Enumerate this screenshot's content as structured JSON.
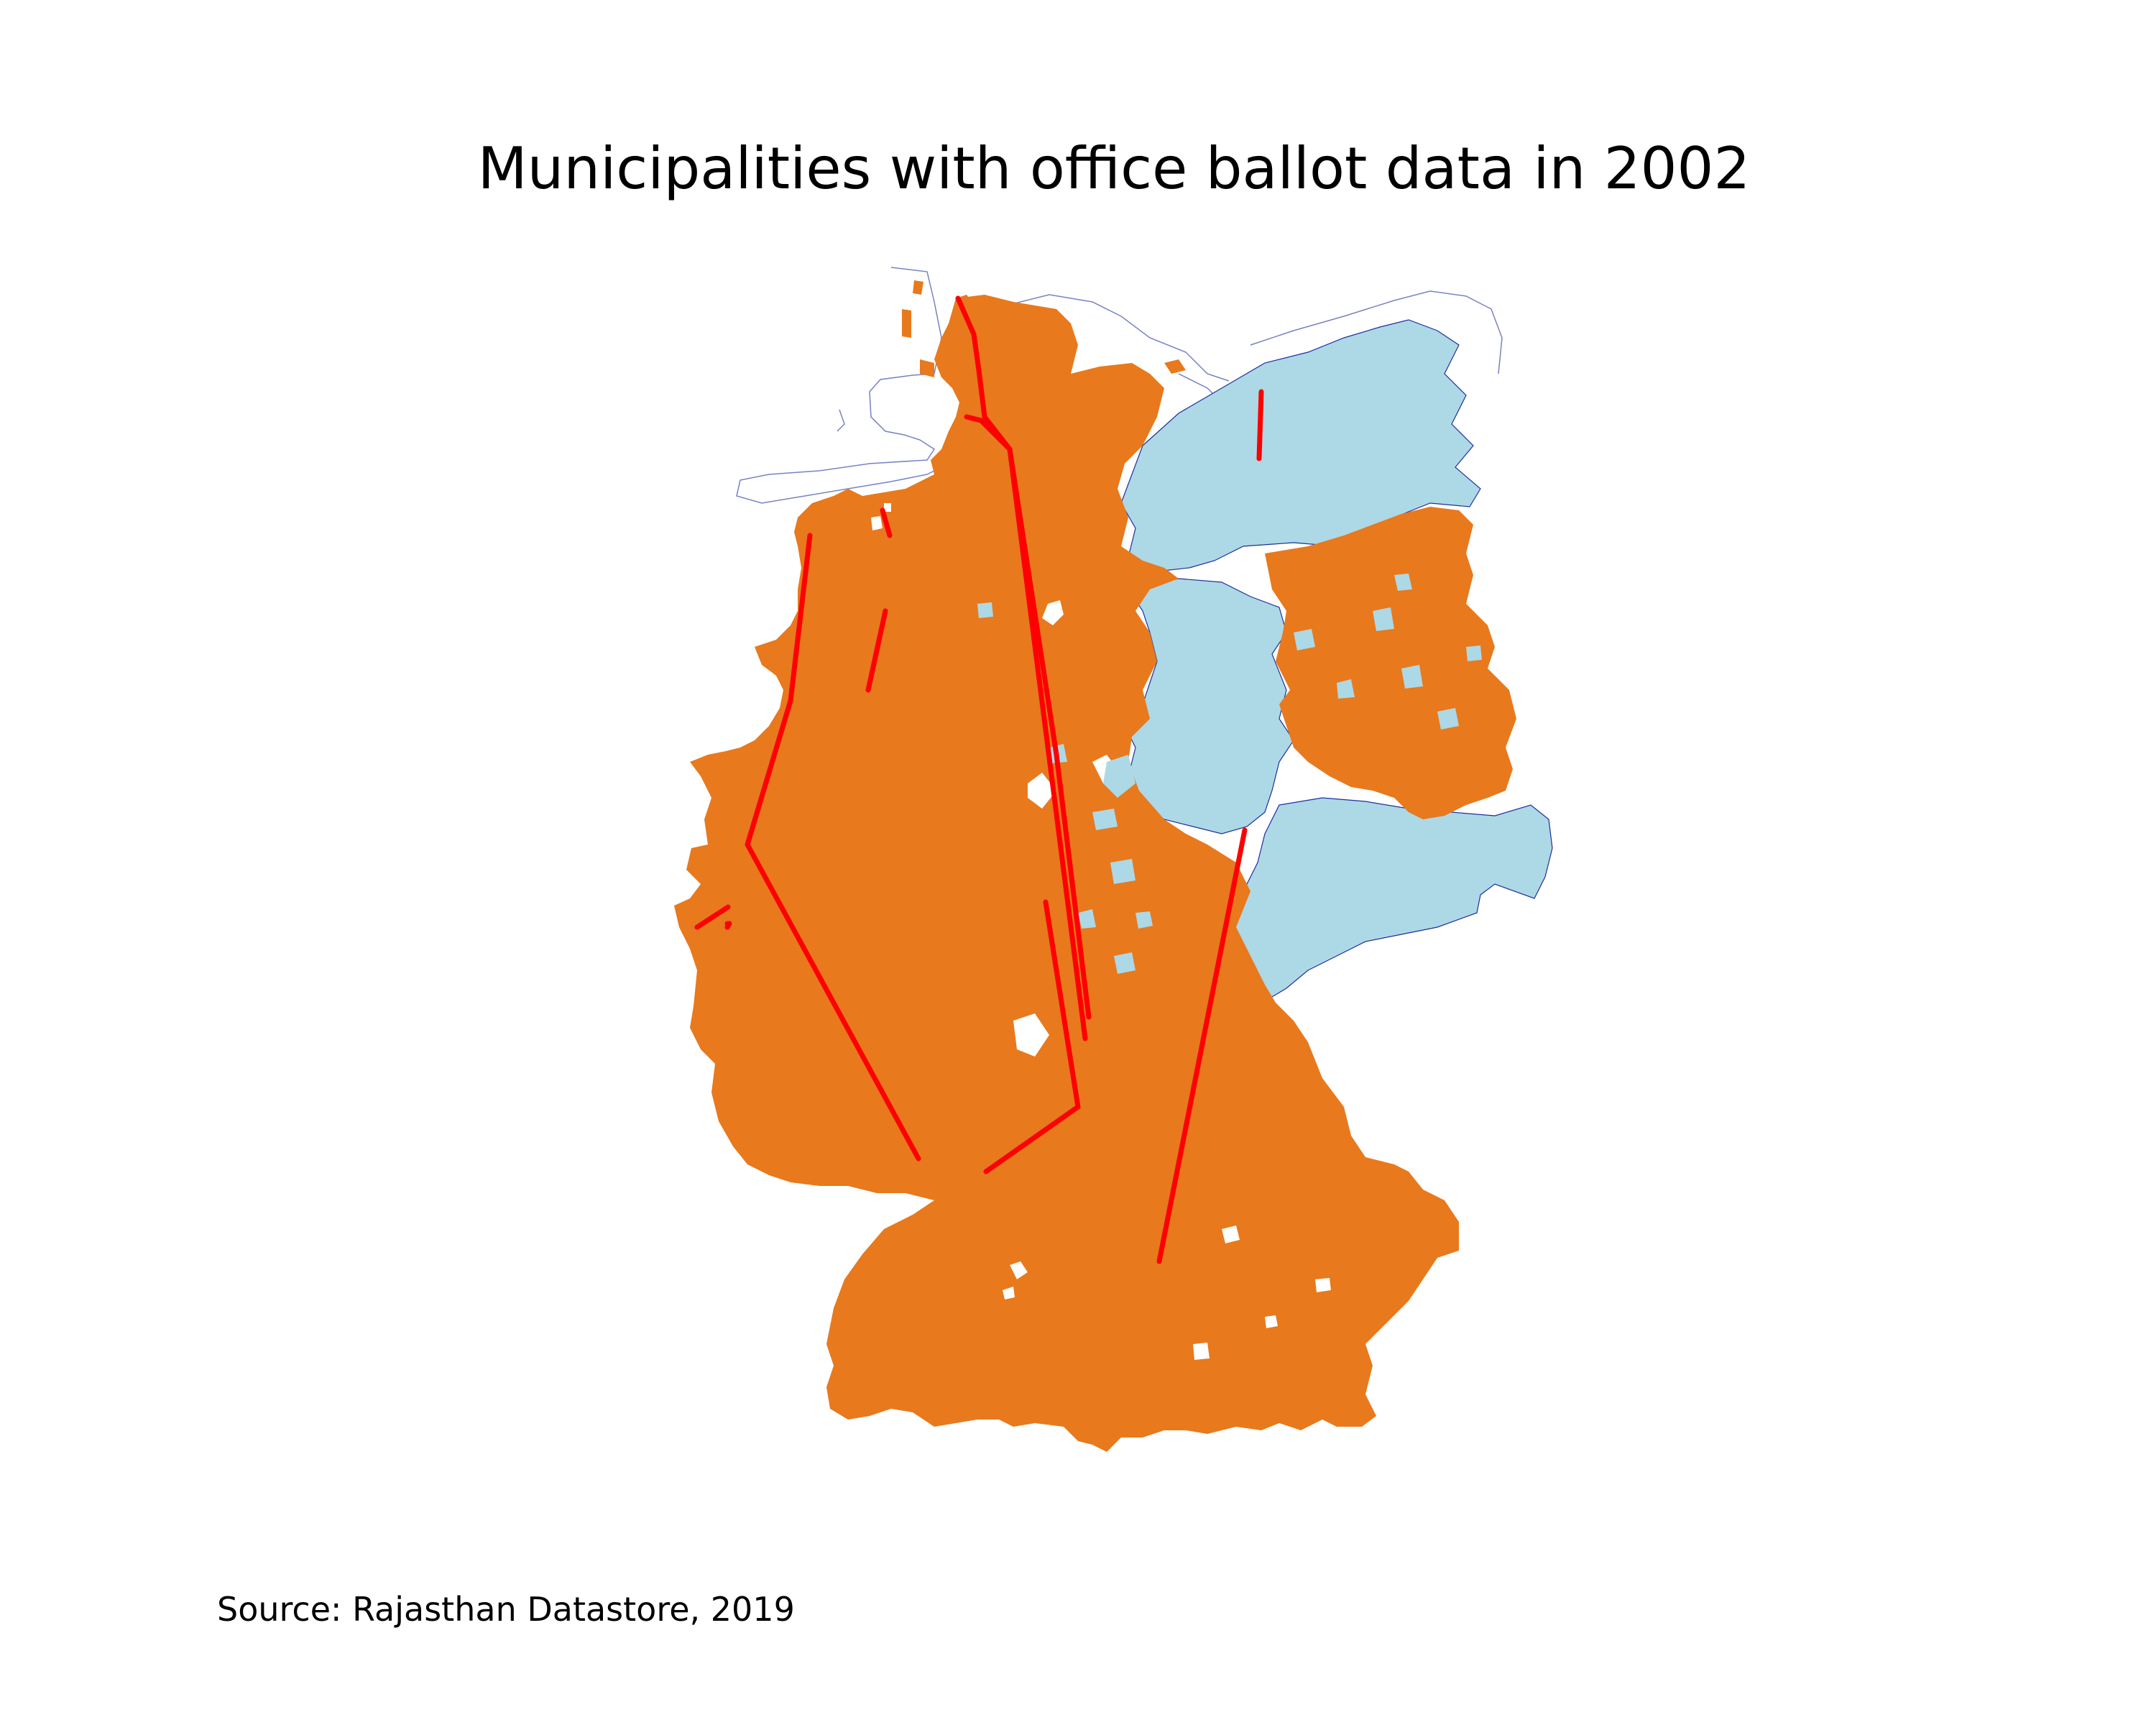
{
  "title": "Municipalities with office ballot data in 2002",
  "source": "Source: Rajasthan Datastore, 2019",
  "colors": {
    "with_data": "#e8791d",
    "without_data": "#add8e6",
    "boundary": "#1f2f9c",
    "lines": "#ff0000",
    "background": "#ffffff"
  }
}
